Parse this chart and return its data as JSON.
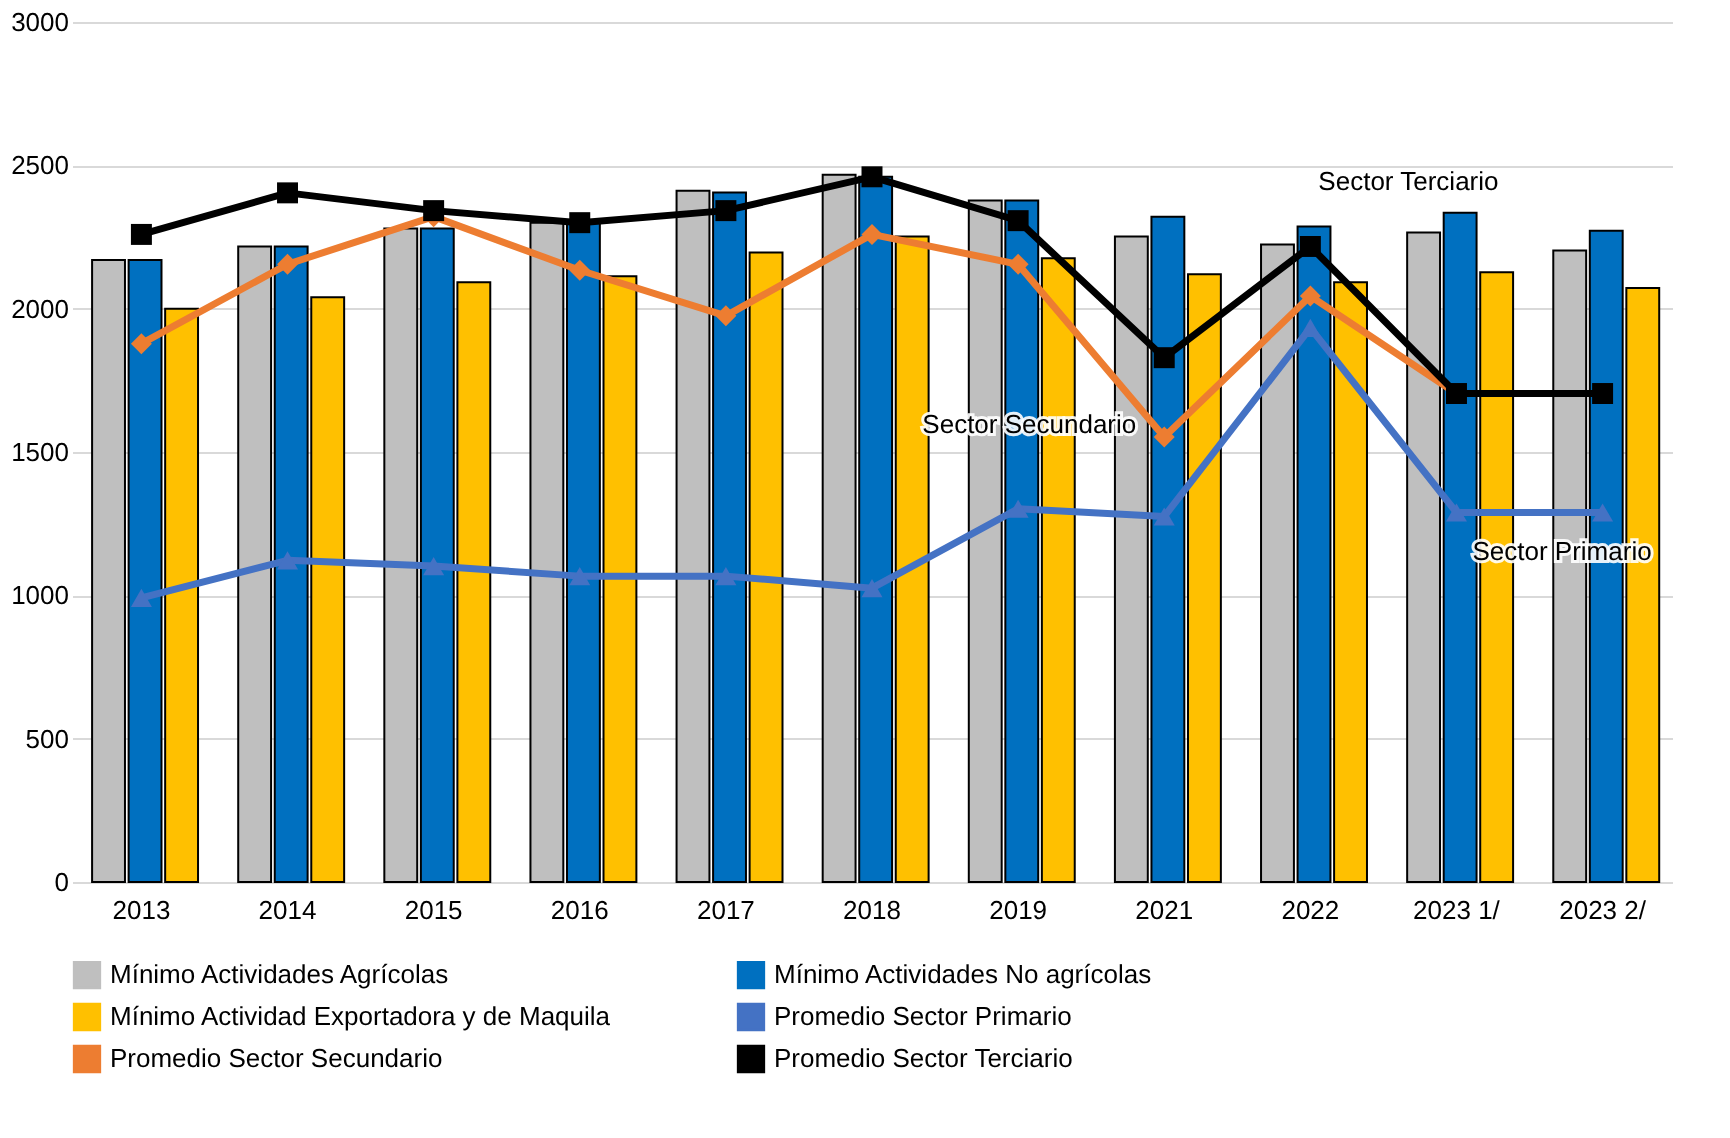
{
  "chart_data": {
    "type": "bar",
    "categories": [
      "2013",
      "2014",
      "2015",
      "2016",
      "2017",
      "2018",
      "2019",
      "2021",
      "2022",
      "2023 1/",
      "2023 2/"
    ],
    "ylim": [
      0,
      3000
    ],
    "yticks": [
      0,
      500,
      1000,
      1500,
      2000,
      2500,
      3000
    ],
    "grid": "y",
    "legend": "bottom",
    "series": [
      {
        "name": "Mínimo Actividades Agrícolas",
        "color": "#bfbfbf",
        "values": [
          2170,
          2217,
          2280,
          2300,
          2411,
          2467,
          2377,
          2252,
          2224,
          2266,
          2203
        ]
      },
      {
        "name": "Mínimo Actividades No agrícolas",
        "color": "#0070c0",
        "values": [
          2170,
          2217,
          2280,
          2300,
          2405,
          2460,
          2377,
          2321,
          2287,
          2335,
          2272
        ]
      },
      {
        "name": "Mínimo Actividad Exportadora y de Maquila",
        "color": "#ffc000",
        "values": [
          2000,
          2040,
          2092,
          2113,
          2196,
          2252,
          2176,
          2120,
          2092,
          2127,
          2072
        ]
      },
      {
        "name": "Promedio Sector Primario",
        "type": "line",
        "color": "#4472c4",
        "marker": "triangle",
        "values": [
          991,
          1122,
          1102,
          1067,
          1067,
          1025,
          1302,
          1275,
          1933,
          1289,
          1289
        ]
      },
      {
        "name": "Promedio Sector Secundario",
        "type": "line",
        "color": "#ed7d31",
        "marker": "diamond",
        "values": [
          1878,
          2155,
          2321,
          2134,
          1975,
          2259,
          2155,
          1552,
          2044,
          1704,
          1704
        ]
      },
      {
        "name": "Promedio Sector Terciario",
        "type": "line",
        "color": "#000000",
        "marker": "square",
        "values": [
          2259,
          2404,
          2342,
          2300,
          2342,
          2460,
          2307,
          1829,
          2217,
          1704,
          1704
        ]
      }
    ],
    "annotations": [
      {
        "text": "Sector Terciario",
        "x": "2022",
        "y": 2217
      },
      {
        "text": "Sector Secundario",
        "x": "2021",
        "y": 1552
      },
      {
        "text": "Sector Primario",
        "x": "2023 1/",
        "y": 1289
      }
    ]
  }
}
